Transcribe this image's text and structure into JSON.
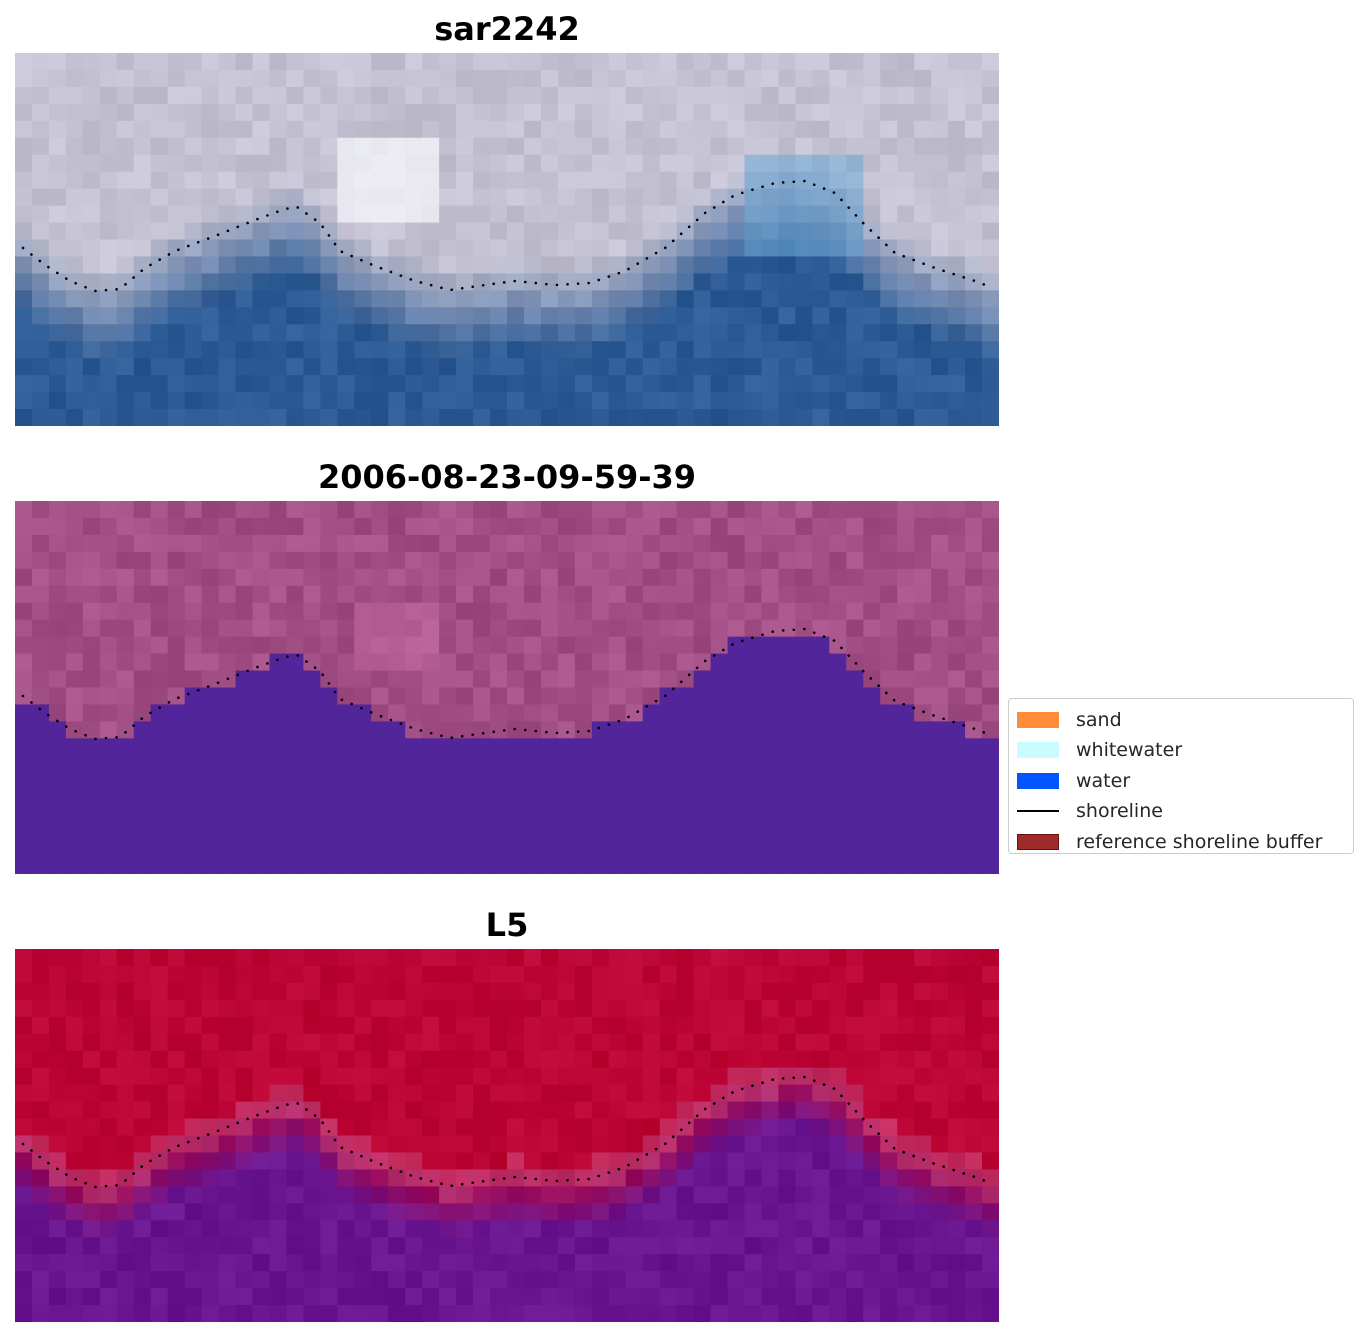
{
  "panels": [
    {
      "title": "sar2242",
      "style": "rgb"
    },
    {
      "title": "2006-08-23-09-59-39",
      "style": "classified"
    },
    {
      "title": "L5",
      "style": "index"
    }
  ],
  "legend": {
    "placement": "center-right",
    "items": [
      {
        "label": "sand",
        "kind": "patch",
        "color": "#ff8c3a"
      },
      {
        "label": "whitewater",
        "kind": "patch",
        "color": "#c8fcff"
      },
      {
        "label": "water",
        "kind": "patch",
        "color": "#0055ff"
      },
      {
        "label": "shoreline",
        "kind": "line",
        "color": "#000000"
      },
      {
        "label": "reference shoreline buffer",
        "kind": "patch",
        "color": "#9e2a2a",
        "edge": "#6e1010"
      }
    ]
  },
  "colors": {
    "rgb_land": "#c4c2d2",
    "rgb_water": "#2c5a94",
    "class_land": "#a24f86",
    "class_water": "#52259a",
    "index_high": "#bb0434",
    "index_low": "#6a1590"
  }
}
